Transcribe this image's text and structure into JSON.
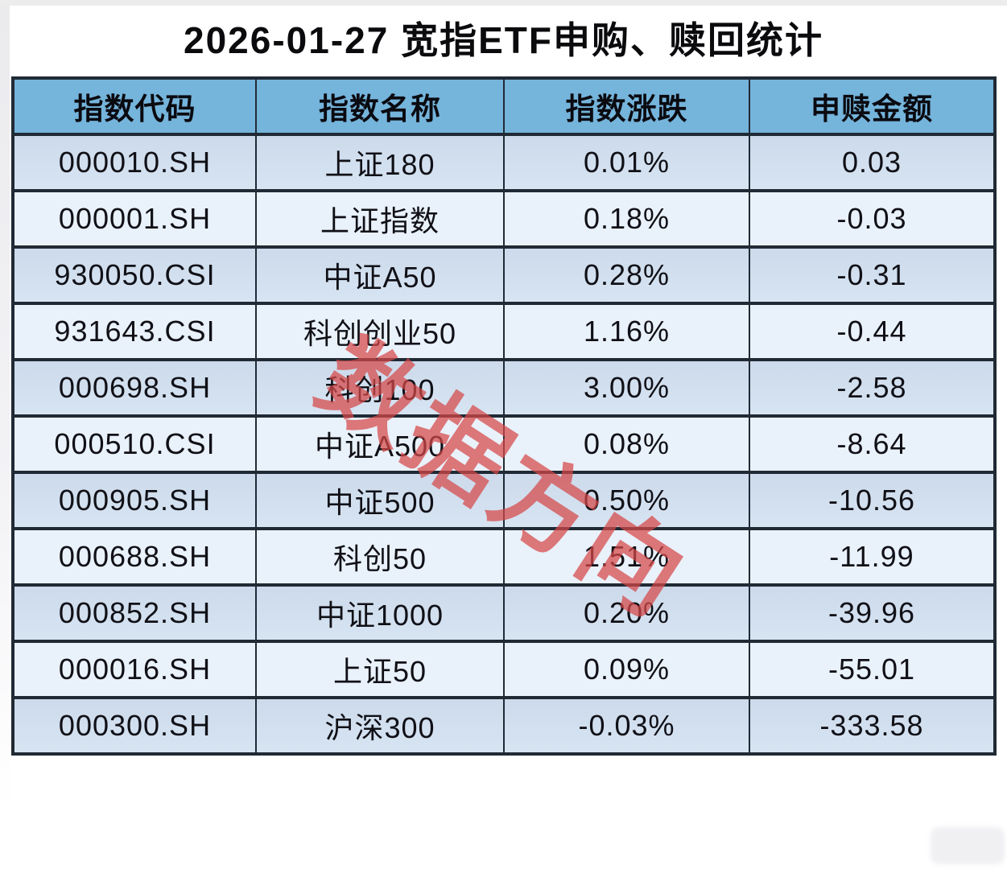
{
  "page": {
    "title": "2026-01-27 宽指ETF申购、赎回统计"
  },
  "watermark": {
    "text": "数据方向"
  },
  "colors": {
    "header_bg": "#75b4db",
    "row_odd_bg": "#cfdded",
    "row_even_bg": "#e9f1fa",
    "border": "#202a35",
    "text": "#101016",
    "watermark_red": "#d64848"
  },
  "chart_data": {
    "type": "table",
    "title": "2026-01-27 宽指ETF申购、赎回统计",
    "columns": [
      "指数代码",
      "指数名称",
      "指数涨跌",
      "申赎金额"
    ],
    "rows": [
      [
        "000010.SH",
        "上证180",
        "0.01%",
        "0.03"
      ],
      [
        "000001.SH",
        "上证指数",
        "0.18%",
        "-0.03"
      ],
      [
        "930050.CSI",
        "中证A50",
        "0.28%",
        "-0.31"
      ],
      [
        "931643.CSI",
        "科创创业50",
        "1.16%",
        "-0.44"
      ],
      [
        "000698.SH",
        "科创100",
        "3.00%",
        "-2.58"
      ],
      [
        "000510.CSI",
        "中证A500",
        "0.08%",
        "-8.64"
      ],
      [
        "000905.SH",
        "中证500",
        "0.50%",
        "-10.56"
      ],
      [
        "000688.SH",
        "科创50",
        "1.51%",
        "-11.99"
      ],
      [
        "000852.SH",
        "中证1000",
        "0.20%",
        "-39.96"
      ],
      [
        "000016.SH",
        "上证50",
        "0.09%",
        "-55.01"
      ],
      [
        "000300.SH",
        "沪深300",
        "-0.03%",
        "-333.58"
      ]
    ],
    "legend": null,
    "watermark": "数据方向"
  }
}
